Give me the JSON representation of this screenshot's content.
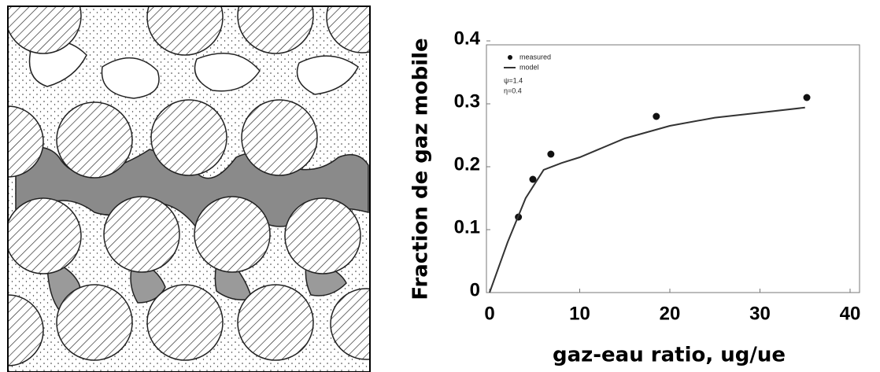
{
  "chart_data": {
    "type": "scatter",
    "xlabel": "gaz-eau ratio, ug/ue",
    "ylabel": "Fraction de gaz mobile",
    "xlim": [
      0,
      40
    ],
    "xticks": [
      0,
      10,
      20,
      30,
      40
    ],
    "ylim": [
      0,
      0.4
    ],
    "yticks": [
      0,
      0.1,
      0.2,
      0.3,
      0.4
    ],
    "annotations": [
      "ψ=1.4",
      "η=0.4"
    ],
    "series": [
      {
        "name": "measured",
        "type": "scatter",
        "color": "#111111",
        "x": [
          3.2,
          4.8,
          6.8,
          18.5,
          35.2
        ],
        "values": [
          0.12,
          0.18,
          0.22,
          0.28,
          0.31
        ]
      },
      {
        "name": "model",
        "type": "line",
        "color": "#333333",
        "x": [
          0,
          2,
          4,
          6,
          8,
          10,
          15,
          20,
          25,
          30,
          35
        ],
        "values": [
          0,
          0.08,
          0.15,
          0.195,
          0.206,
          0.215,
          0.245,
          0.265,
          0.278,
          0.286,
          0.294
        ]
      }
    ]
  }
}
